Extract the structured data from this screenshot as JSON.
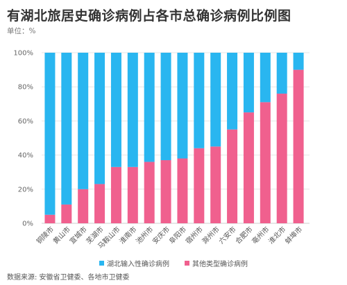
{
  "chart_data": {
    "type": "bar",
    "stacked": true,
    "title": "有湖北旅居史确诊病例占各市总确诊病例比例图",
    "unit_label": "单位：%",
    "categories": [
      "铜陵市",
      "黄山市",
      "宣城市",
      "芜湖市",
      "马鞍山市",
      "淮南市",
      "池州市",
      "安庆市",
      "阜阳市",
      "宿州市",
      "滁州市",
      "六安市",
      "合肥市",
      "亳州市",
      "淮北市",
      "蚌埠市"
    ],
    "series": [
      {
        "name": "湖北输入性确诊病例",
        "color": "#29b6f0",
        "values": [
          95,
          89,
          80,
          77,
          67,
          67,
          64,
          63,
          62,
          56,
          55,
          45,
          35,
          29,
          24,
          10
        ]
      },
      {
        "name": "其他类型确诊病例",
        "color": "#f0608e",
        "values": [
          5,
          11,
          20,
          23,
          33,
          33,
          36,
          37,
          38,
          44,
          45,
          55,
          65,
          71,
          76,
          90
        ]
      }
    ],
    "y_ticks": [
      "0%",
      "20%",
      "40%",
      "60%",
      "80%",
      "100%"
    ],
    "ylim": [
      0,
      100
    ],
    "grid": true,
    "legend_position": "bottom"
  },
  "source": "数据来源: 安徽省卫健委、各地市卫健委"
}
